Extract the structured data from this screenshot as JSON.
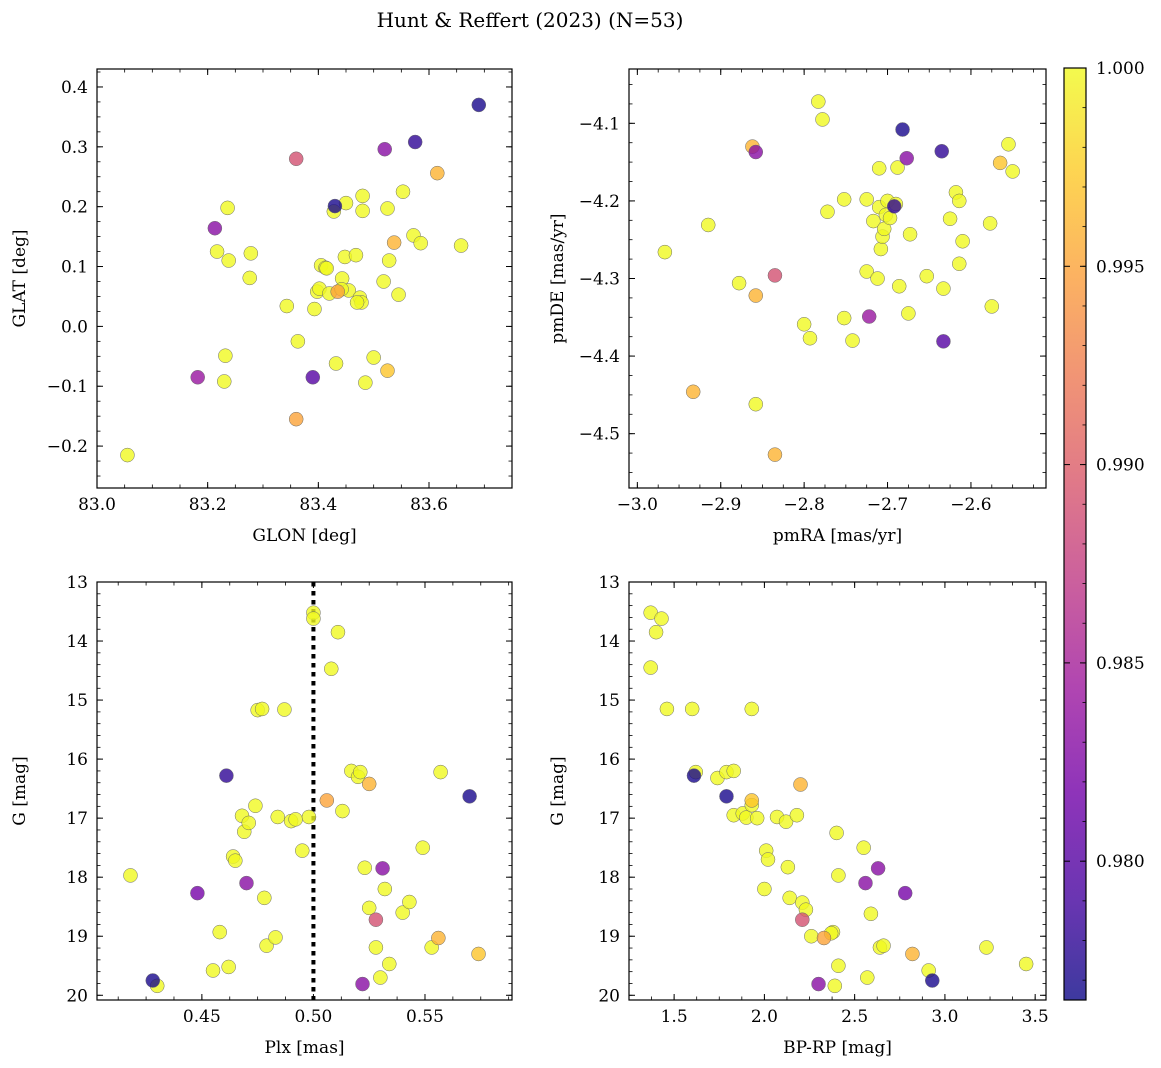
{
  "figure_title": "Hunt & Reffert (2023) (N=53)",
  "colors": {
    "colormap": [
      "#0d0887",
      "#46039f",
      "#7201a8",
      "#9c179e",
      "#bd3786",
      "#d8576b",
      "#ed7953",
      "#fb9f3a",
      "#fdca26",
      "#f0f921"
    ],
    "marker_edge": "#6b6b6b",
    "reference_line": "#000000"
  },
  "colorbar": {
    "min": 0.9765,
    "max": 1.0,
    "ticks": [
      0.98,
      0.985,
      0.99,
      0.995,
      1.0
    ],
    "tick_labels": [
      "0.980",
      "0.985",
      "0.990",
      "0.995",
      "1.000"
    ]
  },
  "chart_data": [
    {
      "id": "glon_glat",
      "type": "scatter",
      "xlabel": "GLON [deg]",
      "ylabel": "GLAT [deg]",
      "xlim": [
        83.0,
        83.75
      ],
      "ylim": [
        -0.27,
        0.43
      ],
      "xticks": [
        83.0,
        83.2,
        83.4,
        83.6
      ],
      "xtick_labels": [
        "83.0",
        "83.2",
        "83.4",
        "83.6"
      ],
      "yticks": [
        -0.2,
        -0.1,
        0.0,
        0.1,
        0.2,
        0.3,
        0.4
      ],
      "ytick_labels": [
        "−0.2",
        "−0.1",
        "0.0",
        "0.1",
        "0.2",
        "0.3",
        "0.4"
      ],
      "invert_y": false,
      "points": [
        [
          83.69,
          0.37,
          0.977
        ],
        [
          83.575,
          0.308,
          0.978
        ],
        [
          83.52,
          0.296,
          0.983
        ],
        [
          83.36,
          0.28,
          0.989
        ],
        [
          83.615,
          0.256,
          0.996
        ],
        [
          83.43,
          0.201,
          0.977
        ],
        [
          83.213,
          0.164,
          0.983
        ],
        [
          83.182,
          -0.085,
          0.984
        ],
        [
          83.39,
          -0.085,
          0.98
        ],
        [
          83.36,
          -0.155,
          0.995
        ],
        [
          83.525,
          -0.074,
          0.997
        ],
        [
          83.435,
          0.058,
          0.995
        ],
        [
          83.537,
          0.14,
          0.996
        ],
        [
          83.055,
          -0.215,
          1.0
        ],
        [
          83.23,
          -0.092,
          1.0
        ],
        [
          83.232,
          -0.049,
          1.0
        ],
        [
          83.238,
          0.11,
          1.0
        ],
        [
          83.236,
          0.198,
          1.0
        ],
        [
          83.217,
          0.125,
          1.0
        ],
        [
          83.278,
          0.122,
          1.0
        ],
        [
          83.276,
          0.081,
          1.0
        ],
        [
          83.343,
          0.034,
          1.0
        ],
        [
          83.363,
          -0.025,
          1.0
        ],
        [
          83.393,
          0.029,
          1.0
        ],
        [
          83.398,
          0.058,
          1.0
        ],
        [
          83.402,
          0.063,
          1.0
        ],
        [
          83.405,
          0.102,
          1.0
        ],
        [
          83.413,
          0.098,
          1.0
        ],
        [
          83.42,
          0.055,
          1.0
        ],
        [
          83.428,
          0.192,
          1.0
        ],
        [
          83.432,
          -0.062,
          1.0
        ],
        [
          83.443,
          0.08,
          1.0
        ],
        [
          83.448,
          0.116,
          1.0
        ],
        [
          83.45,
          0.206,
          1.0
        ],
        [
          83.455,
          0.06,
          1.0
        ],
        [
          83.468,
          0.119,
          1.0
        ],
        [
          83.475,
          0.048,
          1.0
        ],
        [
          83.478,
          0.04,
          1.0
        ],
        [
          83.48,
          0.193,
          1.0
        ],
        [
          83.48,
          0.218,
          1.0
        ],
        [
          83.485,
          -0.094,
          1.0
        ],
        [
          83.5,
          -0.052,
          1.0
        ],
        [
          83.518,
          0.075,
          1.0
        ],
        [
          83.525,
          0.197,
          1.0
        ],
        [
          83.528,
          0.11,
          1.0
        ],
        [
          83.545,
          0.053,
          1.0
        ],
        [
          83.553,
          0.225,
          1.0
        ],
        [
          83.572,
          0.152,
          1.0
        ],
        [
          83.585,
          0.139,
          1.0
        ],
        [
          83.658,
          0.135,
          1.0
        ],
        [
          83.47,
          0.04,
          1.0
        ],
        [
          83.442,
          0.062,
          1.0
        ],
        [
          83.415,
          0.097,
          1.0
        ]
      ]
    },
    {
      "id": "pmra_pmde",
      "type": "scatter",
      "xlabel": "pmRA [mas/yr]",
      "ylabel": "pmDE [mas/yr]",
      "xlim": [
        -3.01,
        -2.51
      ],
      "ylim": [
        -4.57,
        -4.03
      ],
      "xticks": [
        -3.0,
        -2.9,
        -2.8,
        -2.7,
        -2.6
      ],
      "xtick_labels": [
        "−3.0",
        "−2.9",
        "−2.8",
        "−2.7",
        "−2.6"
      ],
      "yticks": [
        -4.5,
        -4.4,
        -4.3,
        -4.2,
        -4.1
      ],
      "ytick_labels": [
        "−4.5",
        "−4.4",
        "−4.3",
        "−4.2",
        "−4.1"
      ],
      "invert_y": false,
      "points": [
        [
          -2.682,
          -4.108,
          0.977
        ],
        [
          -2.635,
          -4.136,
          0.978
        ],
        [
          -2.633,
          -4.381,
          0.98
        ],
        [
          -2.692,
          -4.207,
          0.978
        ],
        [
          -2.858,
          -4.137,
          0.983
        ],
        [
          -2.677,
          -4.145,
          0.983
        ],
        [
          -2.722,
          -4.349,
          0.984
        ],
        [
          -2.835,
          -4.296,
          0.989
        ],
        [
          -2.862,
          -4.13,
          0.996
        ],
        [
          -2.858,
          -4.322,
          0.996
        ],
        [
          -2.933,
          -4.446,
          0.996
        ],
        [
          -2.835,
          -4.527,
          0.996
        ],
        [
          -2.565,
          -4.151,
          0.997
        ],
        [
          -2.967,
          -4.266,
          1.0
        ],
        [
          -2.915,
          -4.231,
          1.0
        ],
        [
          -2.878,
          -4.306,
          1.0
        ],
        [
          -2.858,
          -4.462,
          1.0
        ],
        [
          -2.783,
          -4.072,
          1.0
        ],
        [
          -2.778,
          -4.095,
          1.0
        ],
        [
          -2.772,
          -4.214,
          1.0
        ],
        [
          -2.8,
          -4.359,
          1.0
        ],
        [
          -2.793,
          -4.377,
          1.0
        ],
        [
          -2.752,
          -4.198,
          1.0
        ],
        [
          -2.752,
          -4.351,
          1.0
        ],
        [
          -2.742,
          -4.38,
          1.0
        ],
        [
          -2.725,
          -4.198,
          1.0
        ],
        [
          -2.725,
          -4.291,
          1.0
        ],
        [
          -2.717,
          -4.226,
          1.0
        ],
        [
          -2.712,
          -4.3,
          1.0
        ],
        [
          -2.71,
          -4.158,
          1.0
        ],
        [
          -2.71,
          -4.208,
          1.0
        ],
        [
          -2.708,
          -4.262,
          1.0
        ],
        [
          -2.706,
          -4.246,
          1.0
        ],
        [
          -2.704,
          -4.236,
          1.0
        ],
        [
          -2.702,
          -4.218,
          1.0
        ],
        [
          -2.7,
          -4.2,
          1.0
        ],
        [
          -2.697,
          -4.222,
          1.0
        ],
        [
          -2.69,
          -4.204,
          1.0
        ],
        [
          -2.688,
          -4.157,
          1.0
        ],
        [
          -2.686,
          -4.31,
          1.0
        ],
        [
          -2.675,
          -4.345,
          1.0
        ],
        [
          -2.673,
          -4.243,
          1.0
        ],
        [
          -2.653,
          -4.297,
          1.0
        ],
        [
          -2.633,
          -4.313,
          1.0
        ],
        [
          -2.625,
          -4.223,
          1.0
        ],
        [
          -2.618,
          -4.189,
          1.0
        ],
        [
          -2.614,
          -4.2,
          1.0
        ],
        [
          -2.614,
          -4.281,
          1.0
        ],
        [
          -2.61,
          -4.252,
          1.0
        ],
        [
          -2.577,
          -4.229,
          1.0
        ],
        [
          -2.575,
          -4.336,
          1.0
        ],
        [
          -2.555,
          -4.127,
          1.0
        ],
        [
          -2.55,
          -4.162,
          1.0
        ]
      ]
    },
    {
      "id": "plx_g",
      "type": "scatter",
      "xlabel": "Plx [mas]",
      "ylabel": "G [mag]",
      "xlim": [
        0.403,
        0.589
      ],
      "ylim": [
        20.08,
        13.0
      ],
      "xticks": [
        0.45,
        0.5,
        0.55
      ],
      "xtick_labels": [
        "0.45",
        "0.50",
        "0.55"
      ],
      "yticks": [
        13,
        14,
        15,
        16,
        17,
        18,
        19,
        20
      ],
      "ytick_labels": [
        "13",
        "14",
        "15",
        "16",
        "17",
        "18",
        "19",
        "20"
      ],
      "invert_y": true,
      "vline": 0.5,
      "points": [
        [
          0.428,
          19.75,
          0.977
        ],
        [
          0.57,
          16.63,
          0.977
        ],
        [
          0.461,
          16.28,
          0.978
        ],
        [
          0.448,
          18.27,
          0.982
        ],
        [
          0.47,
          18.1,
          0.983
        ],
        [
          0.531,
          17.85,
          0.983
        ],
        [
          0.522,
          19.81,
          0.983
        ],
        [
          0.528,
          18.72,
          0.989
        ],
        [
          0.506,
          16.7,
          0.995
        ],
        [
          0.525,
          16.42,
          0.996
        ],
        [
          0.556,
          19.03,
          0.996
        ],
        [
          0.574,
          19.3,
          0.997
        ],
        [
          0.418,
          17.97,
          1.0
        ],
        [
          0.43,
          19.84,
          1.0
        ],
        [
          0.455,
          19.58,
          1.0
        ],
        [
          0.458,
          18.93,
          1.0
        ],
        [
          0.462,
          19.52,
          1.0
        ],
        [
          0.464,
          17.65,
          1.0
        ],
        [
          0.465,
          17.72,
          1.0
        ],
        [
          0.468,
          16.96,
          1.0
        ],
        [
          0.469,
          17.23,
          1.0
        ],
        [
          0.471,
          17.08,
          1.0
        ],
        [
          0.474,
          16.79,
          1.0
        ],
        [
          0.475,
          15.17,
          1.0
        ],
        [
          0.477,
          15.15,
          1.0
        ],
        [
          0.478,
          18.35,
          1.0
        ],
        [
          0.479,
          19.16,
          1.0
        ],
        [
          0.483,
          19.02,
          1.0
        ],
        [
          0.484,
          16.98,
          1.0
        ],
        [
          0.487,
          15.16,
          1.0
        ],
        [
          0.49,
          17.05,
          1.0
        ],
        [
          0.492,
          17.02,
          1.0
        ],
        [
          0.495,
          17.55,
          1.0
        ],
        [
          0.498,
          16.98,
          1.0
        ],
        [
          0.5,
          13.52,
          1.0
        ],
        [
          0.5,
          13.62,
          1.0
        ],
        [
          0.508,
          14.47,
          1.0
        ],
        [
          0.511,
          13.85,
          1.0
        ],
        [
          0.513,
          16.88,
          1.0
        ],
        [
          0.517,
          16.2,
          1.0
        ],
        [
          0.52,
          16.3,
          1.0
        ],
        [
          0.521,
          16.22,
          1.0
        ],
        [
          0.523,
          17.84,
          1.0
        ],
        [
          0.525,
          18.52,
          1.0
        ],
        [
          0.528,
          19.19,
          1.0
        ],
        [
          0.53,
          19.7,
          1.0
        ],
        [
          0.532,
          18.2,
          1.0
        ],
        [
          0.534,
          19.47,
          1.0
        ],
        [
          0.54,
          18.6,
          1.0
        ],
        [
          0.543,
          18.42,
          1.0
        ],
        [
          0.549,
          17.5,
          1.0
        ],
        [
          0.553,
          19.19,
          1.0
        ],
        [
          0.557,
          16.22,
          1.0
        ]
      ]
    },
    {
      "id": "bprp_g",
      "type": "scatter",
      "xlabel": "BP-RP [mag]",
      "ylabel": "G [mag]",
      "xlim": [
        1.25,
        3.56
      ],
      "ylim": [
        20.08,
        13.0
      ],
      "xticks": [
        1.5,
        2.0,
        2.5,
        3.0,
        3.5
      ],
      "xtick_labels": [
        "1.5",
        "2.0",
        "2.5",
        "3.0",
        "3.5"
      ],
      "yticks": [
        13,
        14,
        15,
        16,
        17,
        18,
        19,
        20
      ],
      "ytick_labels": [
        "13",
        "14",
        "15",
        "16",
        "17",
        "18",
        "19",
        "20"
      ],
      "invert_y": true,
      "points": [
        [
          1.61,
          16.28,
          0.977
        ],
        [
          1.79,
          16.63,
          0.977
        ],
        [
          2.93,
          19.75,
          0.977
        ],
        [
          2.78,
          18.27,
          0.982
        ],
        [
          2.63,
          17.85,
          0.983
        ],
        [
          2.56,
          18.1,
          0.983
        ],
        [
          2.3,
          19.81,
          0.983
        ],
        [
          2.21,
          18.72,
          0.989
        ],
        [
          2.33,
          19.03,
          0.995
        ],
        [
          2.82,
          19.3,
          0.996
        ],
        [
          2.2,
          16.43,
          0.996
        ],
        [
          1.93,
          16.7,
          0.997
        ],
        [
          1.37,
          13.52,
          1.0
        ],
        [
          1.4,
          13.85,
          1.0
        ],
        [
          1.43,
          13.62,
          1.0
        ],
        [
          1.37,
          14.45,
          1.0
        ],
        [
          1.46,
          15.15,
          1.0
        ],
        [
          1.6,
          15.15,
          1.0
        ],
        [
          1.93,
          15.15,
          1.0
        ],
        [
          1.62,
          16.22,
          1.0
        ],
        [
          1.74,
          16.32,
          1.0
        ],
        [
          1.79,
          16.22,
          1.0
        ],
        [
          1.83,
          16.2,
          1.0
        ],
        [
          1.83,
          16.95,
          1.0
        ],
        [
          1.88,
          16.92,
          1.0
        ],
        [
          1.9,
          16.99,
          1.0
        ],
        [
          1.93,
          16.78,
          1.0
        ],
        [
          1.96,
          17.0,
          1.0
        ],
        [
          2.01,
          17.55,
          1.0
        ],
        [
          2.02,
          17.7,
          1.0
        ],
        [
          2.0,
          18.2,
          1.0
        ],
        [
          2.07,
          16.98,
          1.0
        ],
        [
          2.12,
          17.06,
          1.0
        ],
        [
          2.18,
          16.95,
          1.0
        ],
        [
          2.13,
          17.83,
          1.0
        ],
        [
          2.14,
          18.35,
          1.0
        ],
        [
          2.21,
          18.43,
          1.0
        ],
        [
          2.23,
          18.55,
          1.0
        ],
        [
          2.26,
          19.0,
          1.0
        ],
        [
          2.38,
          18.93,
          1.0
        ],
        [
          2.39,
          19.84,
          1.0
        ],
        [
          2.41,
          19.5,
          1.0
        ],
        [
          2.4,
          17.25,
          1.0
        ],
        [
          2.41,
          17.97,
          1.0
        ],
        [
          2.55,
          17.5,
          1.0
        ],
        [
          2.57,
          19.7,
          1.0
        ],
        [
          2.59,
          18.62,
          1.0
        ],
        [
          2.64,
          19.19,
          1.0
        ],
        [
          2.66,
          19.16,
          1.0
        ],
        [
          2.91,
          19.58,
          1.0
        ],
        [
          3.23,
          19.19,
          1.0
        ],
        [
          3.45,
          19.47,
          1.0
        ],
        [
          2.37,
          18.95,
          1.0
        ]
      ]
    }
  ]
}
